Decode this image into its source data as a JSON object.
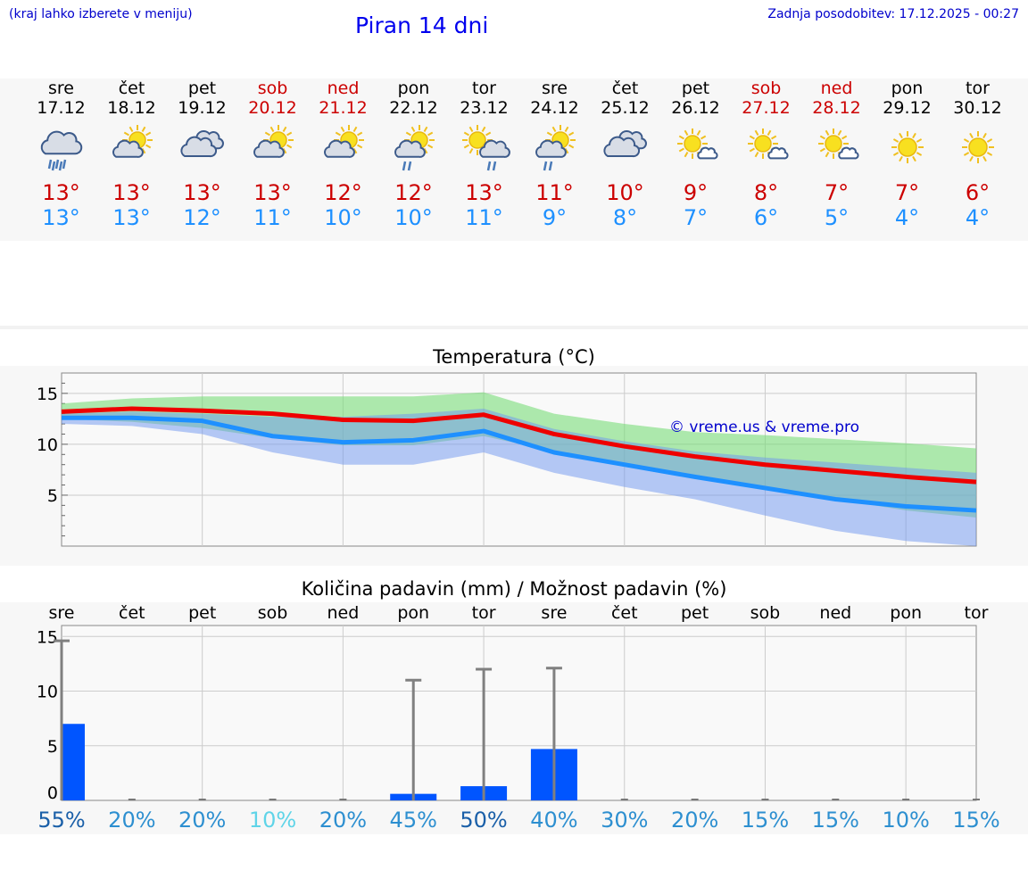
{
  "header": {
    "hint": "(kraj lahko izberete v meniju)",
    "title": "Piran 14 dni",
    "updated": "Zadnja posodobitev: 17.12.2025 - 00:27"
  },
  "colors": {
    "max": "#cc0000",
    "min": "#1e90ff",
    "bar": "#0055ff",
    "weekend": "#cc0000"
  },
  "days": [
    {
      "name": "sre",
      "date": "17.12",
      "weekend": false,
      "icon": "cloud-rain-heavy-icon",
      "max": "13°",
      "min": "13°"
    },
    {
      "name": "čet",
      "date": "18.12",
      "weekend": false,
      "icon": "sun-cloud-icon",
      "max": "13°",
      "min": "13°"
    },
    {
      "name": "pet",
      "date": "19.12",
      "weekend": false,
      "icon": "cloudy-icon",
      "max": "13°",
      "min": "12°"
    },
    {
      "name": "sob",
      "date": "20.12",
      "weekend": true,
      "icon": "sun-cloud-icon",
      "max": "13°",
      "min": "11°"
    },
    {
      "name": "ned",
      "date": "21.12",
      "weekend": true,
      "icon": "sun-cloud-icon",
      "max": "12°",
      "min": "10°"
    },
    {
      "name": "pon",
      "date": "22.12",
      "weekend": false,
      "icon": "sun-cloud-rain-icon",
      "max": "12°",
      "min": "10°"
    },
    {
      "name": "tor",
      "date": "23.12",
      "weekend": false,
      "icon": "sun-cloud-rain-right-icon",
      "max": "13°",
      "min": "11°"
    },
    {
      "name": "sre",
      "date": "24.12",
      "weekend": false,
      "icon": "sun-cloud-rain-icon",
      "max": "11°",
      "min": "9°"
    },
    {
      "name": "čet",
      "date": "25.12",
      "weekend": false,
      "icon": "cloudy-icon",
      "max": "10°",
      "min": "8°"
    },
    {
      "name": "pet",
      "date": "26.12",
      "weekend": false,
      "icon": "sun-small-cloud-icon",
      "max": "9°",
      "min": "7°"
    },
    {
      "name": "sob",
      "date": "27.12",
      "weekend": true,
      "icon": "sun-small-cloud-icon",
      "max": "8°",
      "min": "6°"
    },
    {
      "name": "ned",
      "date": "28.12",
      "weekend": true,
      "icon": "sun-small-cloud-icon",
      "max": "7°",
      "min": "5°"
    },
    {
      "name": "pon",
      "date": "29.12",
      "weekend": false,
      "icon": "sun-icon",
      "max": "7°",
      "min": "4°"
    },
    {
      "name": "tor",
      "date": "30.12",
      "weekend": false,
      "icon": "sun-icon",
      "max": "6°",
      "min": "4°"
    }
  ],
  "chart_data": [
    {
      "type": "line",
      "title": "Temperatura (°C)",
      "watermark": "© vreme.us & vreme.pro",
      "ylim": [
        0,
        17
      ],
      "yticks": [
        "5",
        "10",
        "15"
      ],
      "x": [
        0,
        1,
        2,
        3,
        4,
        5,
        6,
        7,
        8,
        9,
        10,
        11,
        12,
        13
      ],
      "series": [
        {
          "name": "max",
          "values": [
            13.2,
            13.5,
            13.3,
            13.0,
            12.4,
            12.3,
            12.9,
            11.0,
            9.8,
            8.8,
            8.0,
            7.4,
            6.8,
            6.3
          ]
        },
        {
          "name": "min",
          "values": [
            12.6,
            12.6,
            12.3,
            10.8,
            10.2,
            10.4,
            11.3,
            9.2,
            8.0,
            6.8,
            5.7,
            4.6,
            3.9,
            3.5
          ]
        },
        {
          "name": "max_range_high",
          "values": [
            14.0,
            14.5,
            14.7,
            14.7,
            14.7,
            14.7,
            15.1,
            13.0,
            12.0,
            11.2,
            10.9,
            10.5,
            10.1,
            9.6
          ]
        },
        {
          "name": "max_range_low",
          "values": [
            12.5,
            12.2,
            11.6,
            10.6,
            9.9,
            9.9,
            10.8,
            9.3,
            7.8,
            6.6,
            5.6,
            4.6,
            3.5,
            2.8
          ]
        },
        {
          "name": "min_range_high",
          "values": [
            13.0,
            13.2,
            13.0,
            12.7,
            12.7,
            13.0,
            13.5,
            11.5,
            10.3,
            9.3,
            8.7,
            8.2,
            7.7,
            7.2
          ]
        },
        {
          "name": "min_range_low",
          "values": [
            12.0,
            11.8,
            11.0,
            9.2,
            8.0,
            8.0,
            9.2,
            7.2,
            5.8,
            4.6,
            3.0,
            1.5,
            0.5,
            0.0
          ]
        }
      ]
    },
    {
      "type": "bar",
      "title": "Količina padavin (mm) / Možnost padavin (%)",
      "ylim": [
        0,
        16
      ],
      "yticks": [
        "0",
        "5",
        "10",
        "15"
      ],
      "categories": [
        "sre",
        "čet",
        "pet",
        "sob",
        "ned",
        "pon",
        "tor",
        "sre",
        "čet",
        "pet",
        "sob",
        "ned",
        "pon",
        "tor"
      ],
      "values": [
        7.0,
        0,
        0,
        0,
        0,
        0.6,
        1.3,
        4.7,
        0,
        0,
        0,
        0,
        0,
        0
      ],
      "error_max": [
        14.6,
        0,
        0,
        0,
        0,
        11.0,
        12.0,
        12.1,
        0,
        0,
        0,
        0,
        0,
        0
      ],
      "probability": [
        "55%",
        "20%",
        "20%",
        "10%",
        "20%",
        "45%",
        "50%",
        "40%",
        "30%",
        "20%",
        "15%",
        "15%",
        "10%",
        "15%"
      ],
      "probability_colors": [
        "#1a5fa8",
        "#2d8fd0",
        "#2d8fd0",
        "#5fd4e8",
        "#2d8fd0",
        "#2d8fd0",
        "#1a5fa8",
        "#2d8fd0",
        "#2d8fd0",
        "#2d8fd0",
        "#2d8fd0",
        "#2d8fd0",
        "#2d8fd0",
        "#2d8fd0"
      ]
    }
  ]
}
